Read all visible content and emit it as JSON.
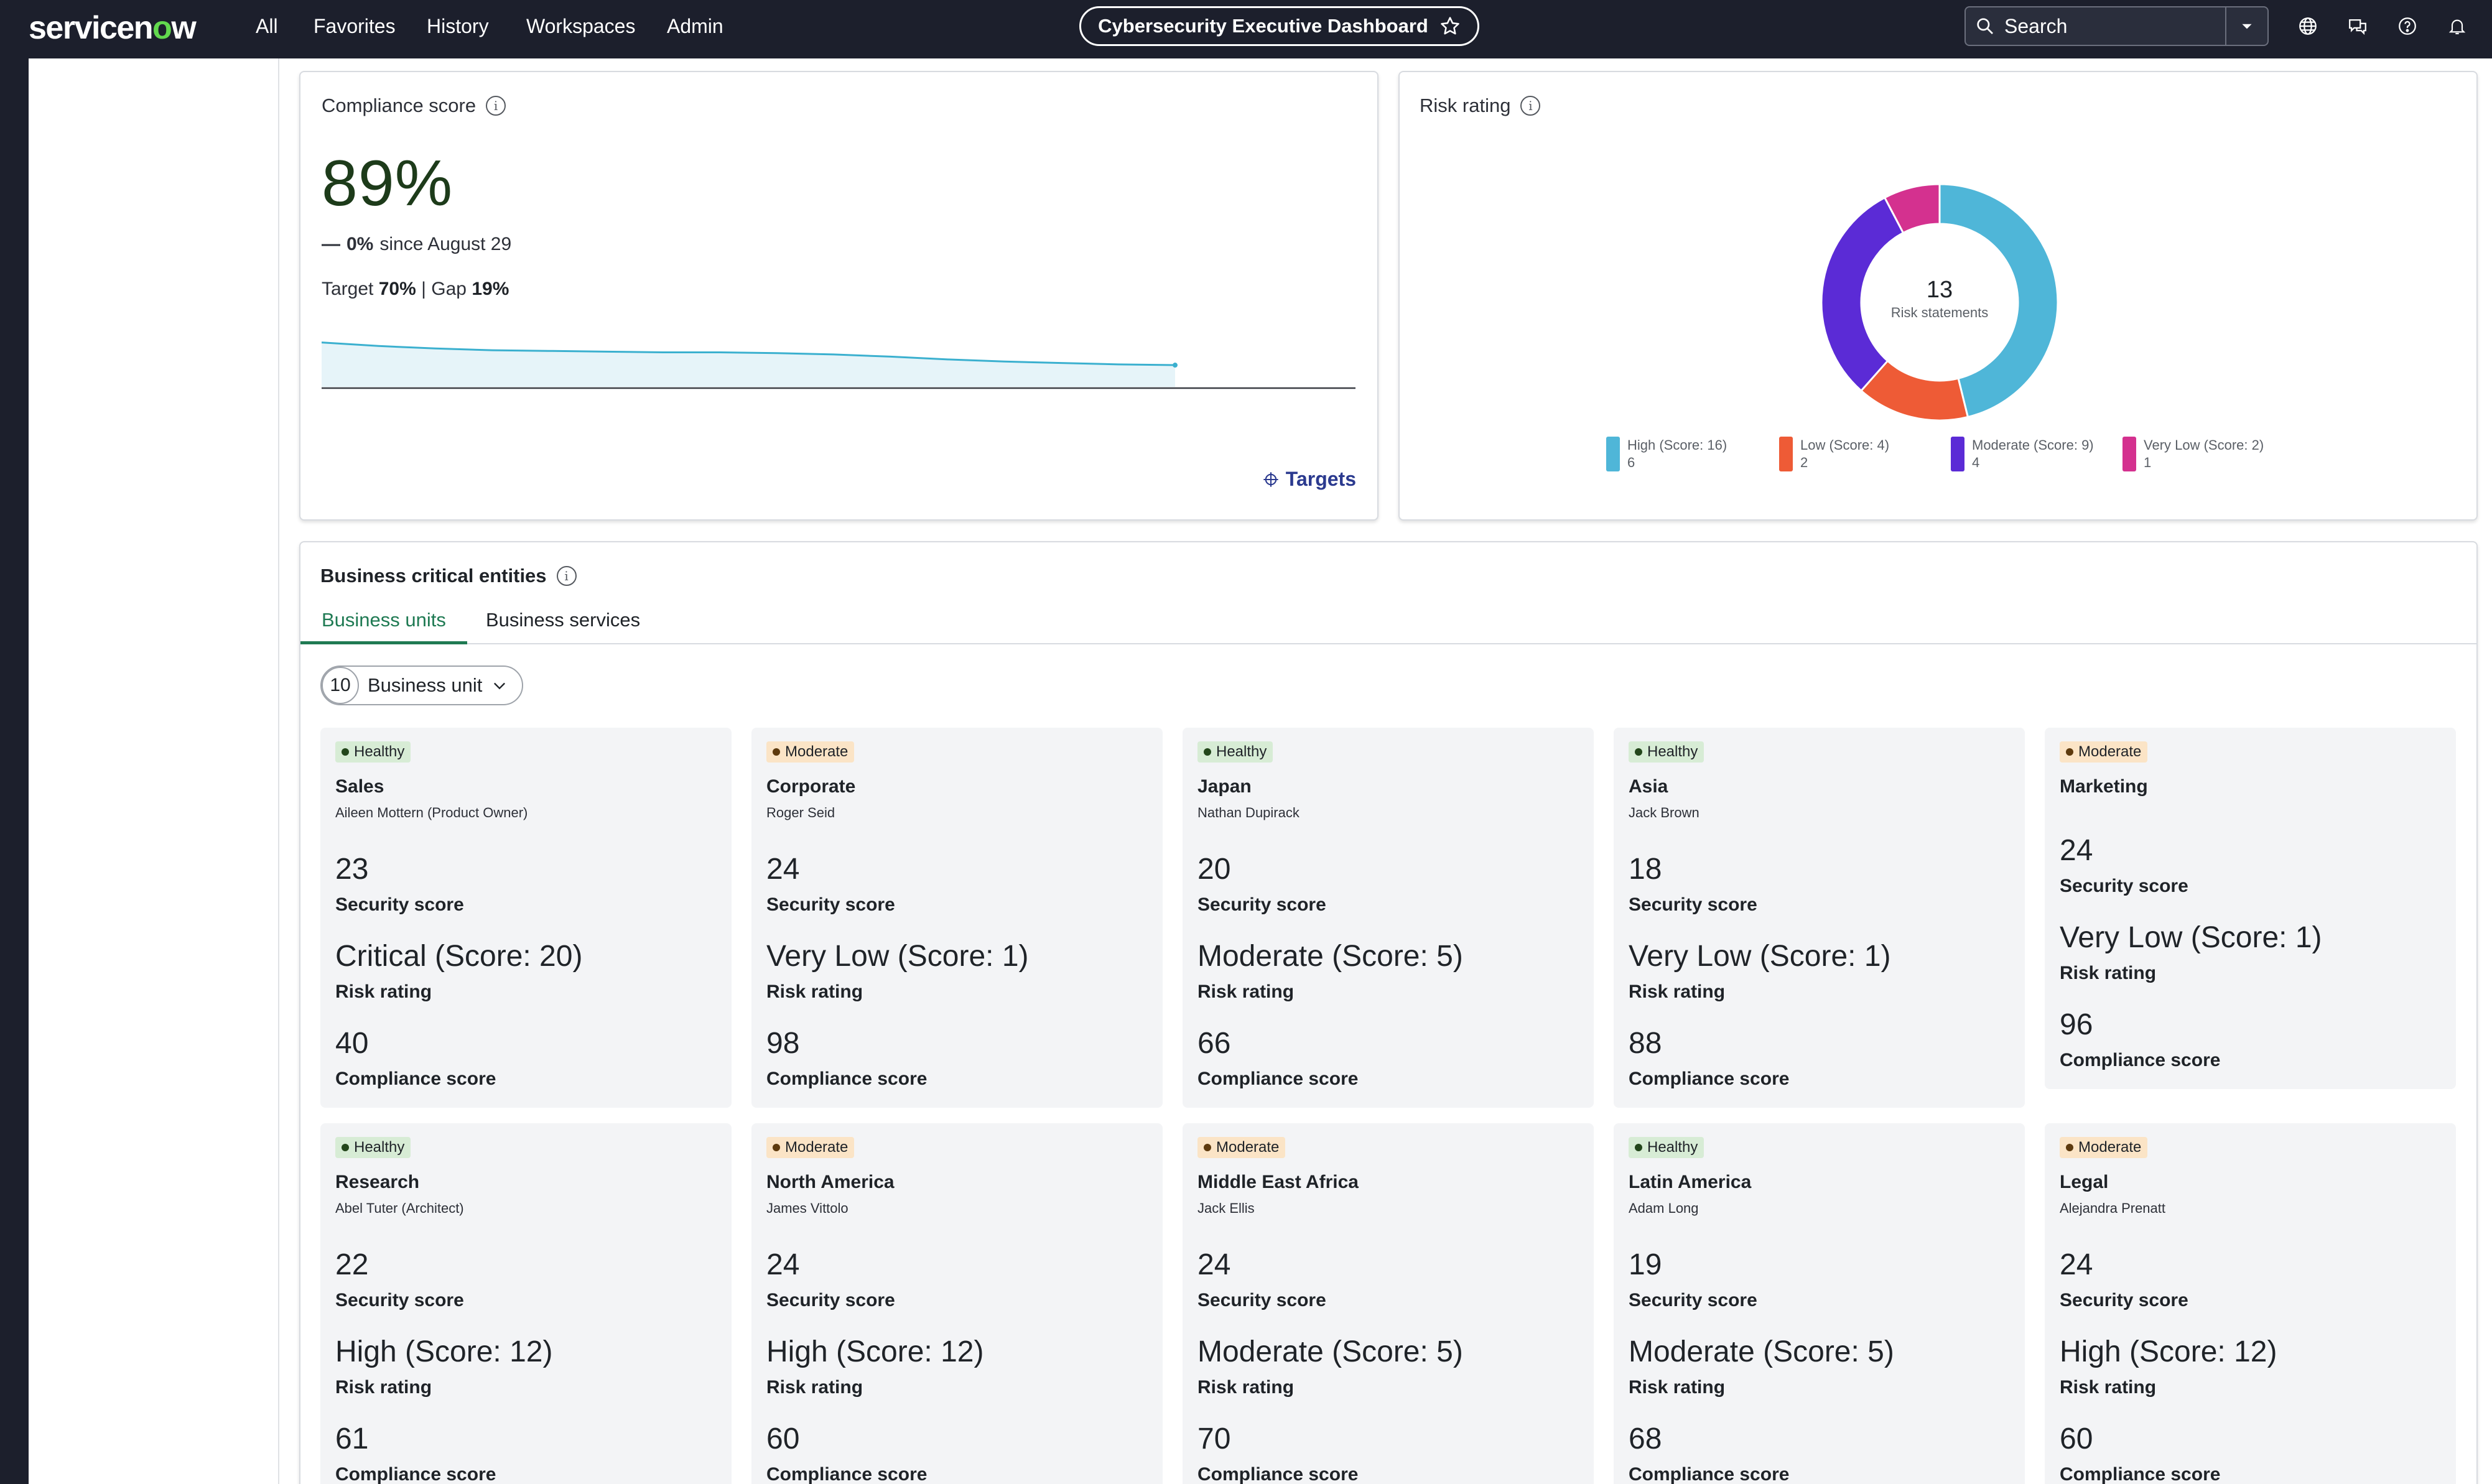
{
  "nav": {
    "logo_prefix": "servicen",
    "logo_o": "o",
    "logo_suffix": "w",
    "items": [
      "All",
      "Favorites",
      "History",
      "Workspaces",
      "Admin"
    ],
    "dashboard_title": "Cybersecurity Executive Dashboard",
    "search_placeholder": "Search",
    "icons": [
      "search-icon",
      "chevron-down-icon",
      "globe-icon",
      "chat-icon",
      "help-icon",
      "bell-icon",
      "star-icon"
    ]
  },
  "compliance": {
    "title": "Compliance score",
    "value": "89%",
    "delta_symbol": "—",
    "delta": "0%",
    "since": "since August 29",
    "target_label": "Target",
    "target_value": "70%",
    "separator": "|",
    "gap_label": "Gap",
    "gap_value": "19%",
    "targets_link": "Targets",
    "trend": [
      0.08,
      0.18,
      0.25,
      0.3,
      0.32,
      0.34,
      0.36,
      0.36,
      0.38,
      0.42,
      0.48,
      0.56,
      0.62,
      0.66,
      0.7,
      0.72
    ]
  },
  "risk": {
    "title": "Risk rating",
    "center_value": "13",
    "center_label": "Risk statements",
    "colors": {
      "high": "#4fb6d8",
      "low": "#ee5b36",
      "moderate": "#5b2bd6",
      "very_low": "#d4318f"
    },
    "legend": [
      {
        "label": "High (Score: 16)",
        "count": "6"
      },
      {
        "label": "Low (Score: 4)",
        "count": "2"
      },
      {
        "label": "Moderate (Score: 9)",
        "count": "4"
      },
      {
        "label": "Very Low (Score: 2)",
        "count": "1"
      }
    ]
  },
  "entities": {
    "title": "Business critical entities",
    "tabs": [
      "Business units",
      "Business services"
    ],
    "filter_count": "10",
    "filter_label": "Business unit",
    "metric_labels": {
      "security": "Security score",
      "risk": "Risk rating",
      "compliance": "Compliance score"
    },
    "tiles": [
      {
        "status": "Healthy",
        "name": "Sales",
        "owner": "Aileen Mottern (Product Owner)",
        "security": "23",
        "risk": "Critical (Score: 20)",
        "compliance": "40"
      },
      {
        "status": "Moderate",
        "name": "Corporate",
        "owner": "Roger Seid",
        "security": "24",
        "risk": "Very Low (Score: 1)",
        "compliance": "98"
      },
      {
        "status": "Healthy",
        "name": "Japan",
        "owner": "Nathan Dupirack",
        "security": "20",
        "risk": "Moderate (Score: 5)",
        "compliance": "66"
      },
      {
        "status": "Healthy",
        "name": "Asia",
        "owner": "Jack Brown",
        "security": "18",
        "risk": "Very Low (Score: 1)",
        "compliance": "88"
      },
      {
        "status": "Moderate",
        "name": "Marketing",
        "owner": "",
        "security": "24",
        "risk": "Very Low (Score: 1)",
        "compliance": "96"
      },
      {
        "status": "Healthy",
        "name": "Research",
        "owner": "Abel Tuter (Architect)",
        "security": "22",
        "risk": "High (Score: 12)",
        "compliance": "61"
      },
      {
        "status": "Moderate",
        "name": "North America",
        "owner": "James Vittolo",
        "security": "24",
        "risk": "High (Score: 12)",
        "compliance": "60"
      },
      {
        "status": "Moderate",
        "name": "Middle East Africa",
        "owner": "Jack Ellis",
        "security": "24",
        "risk": "Moderate (Score: 5)",
        "compliance": "70"
      },
      {
        "status": "Healthy",
        "name": "Latin America",
        "owner": "Adam Long",
        "security": "19",
        "risk": "Moderate (Score: 5)",
        "compliance": "68"
      },
      {
        "status": "Moderate",
        "name": "Legal",
        "owner": "Alejandra Prenatt",
        "security": "24",
        "risk": "High (Score: 12)",
        "compliance": "60"
      }
    ]
  }
}
